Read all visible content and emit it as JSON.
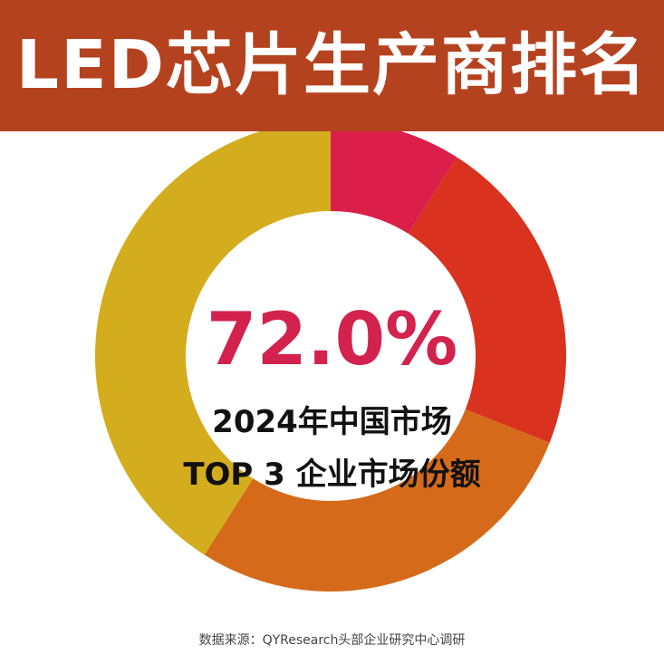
{
  "header": {
    "title": "LED芯片生产商排名"
  },
  "chart_data": {
    "type": "pie",
    "variant": "donut",
    "center_value": "72.0%",
    "center_label_line1": "2024年中国市场",
    "center_label_line2": "TOP 3 企业市场份额",
    "slices": [
      {
        "value": 9.0,
        "color": "#dc1e4b"
      },
      {
        "value": 22.0,
        "color": "#d9321e"
      },
      {
        "value": 28.0,
        "color": "#d56b1a"
      },
      {
        "value": 41.0,
        "color": "#d4ad1f"
      }
    ]
  },
  "colors": {
    "banner": "#b5421f",
    "accent": "#d2224d"
  },
  "footer": {
    "source": "数据来源：QYResearch头部企业研究中心调研"
  }
}
